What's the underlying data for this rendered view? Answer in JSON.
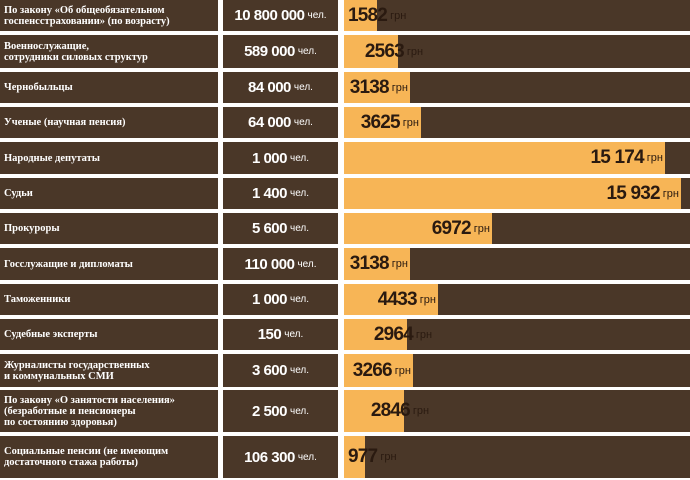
{
  "colors": {
    "row_bg": "#4a3728",
    "bar": "#f7b556",
    "text_light": "#ffffff",
    "text_dark": "#2a1a10"
  },
  "count_unit": "чел.",
  "value_unit": "грн",
  "chart_data": {
    "type": "bar",
    "orientation": "horizontal",
    "categories": [
      "По закону «Об общеобязательном\nгоспенсстраховании» (по возрасту)",
      "Военнослужащие,\nсотрудники силовых структур",
      "Чернобыльцы",
      "Ученые (научная пенсия)",
      "Народные депутаты",
      "Судьи",
      "Прокуроры",
      "Госслужащие и дипломаты",
      "Таможенники",
      "Судебные эксперты",
      "Журналисты государственных\nи коммунальных СМИ",
      "По закону «О занятости населения»\n(безработные и пенсионеры\nпо состоянию здоровья)",
      "Социальные пенсии (не имеющим\nдостаточного стажа работы)"
    ],
    "counts": [
      "10 800 000",
      "589 000",
      "84 000",
      "64 000",
      "1 000",
      "1 400",
      "5 600",
      "110 000",
      "1 000",
      "150",
      "3 600",
      "2 500",
      "106 300"
    ],
    "value_labels": [
      "1582",
      "2563",
      "3138",
      "3625",
      "15 174",
      "15 932",
      "6972",
      "3138",
      "4433",
      "2964",
      "3266",
      "2846",
      "977"
    ],
    "values": [
      1582,
      2563,
      3138,
      3625,
      15174,
      15932,
      6972,
      3138,
      4433,
      2964,
      3266,
      2846,
      977
    ],
    "xlim": [
      0,
      16350
    ]
  }
}
